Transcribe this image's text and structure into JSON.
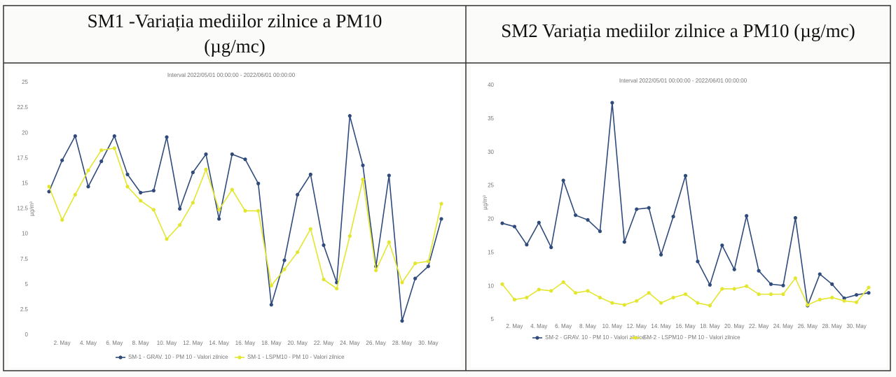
{
  "chart_data": [
    {
      "type": "line",
      "title": "SM1 -Variația mediilor zilnice a PM10 (µg/mc)",
      "subtitle": "Interval 2022/05/01 00:00:00 - 2022/06/01 00:00:00",
      "y_label": "µg/m³",
      "categories": [
        null,
        "2. May",
        null,
        "4. May",
        null,
        "6. May",
        null,
        "8. May",
        null,
        "10. May",
        null,
        "12. May",
        null,
        "14. May",
        null,
        "16. May",
        null,
        "18. May",
        null,
        "20. May",
        null,
        "22. May",
        null,
        "24. May",
        null,
        "26. May",
        null,
        "28. May",
        null,
        "30. May",
        null
      ],
      "series": [
        {
          "name": "SM-1 - GRAV. 10 - PM 10 - Valori zilnice",
          "color": "#2f4b7c",
          "values": [
            14.2,
            17.3,
            19.7,
            14.7,
            17.2,
            19.7,
            15.9,
            14.1,
            14.3,
            19.6,
            12.5,
            16.1,
            17.9,
            11.5,
            17.9,
            17.4,
            15.0,
            3.0,
            7.4,
            13.9,
            15.9,
            8.9,
            5.2,
            21.7,
            16.8,
            6.8,
            15.8,
            1.4,
            5.6,
            6.8,
            11.5
          ]
        },
        {
          "name": "SM-1 - LSPM10 - PM 10 - Valori zilnice",
          "color": "#e3e62e",
          "values": [
            14.7,
            11.4,
            13.9,
            16.3,
            18.3,
            18.5,
            14.7,
            13.3,
            12.4,
            9.5,
            10.9,
            13.1,
            16.4,
            12.4,
            14.4,
            12.3,
            12.3,
            4.9,
            6.5,
            8.2,
            10.5,
            5.5,
            4.6,
            9.8,
            15.4,
            6.4,
            9.2,
            5.2,
            7.1,
            7.3,
            13.0
          ]
        }
      ],
      "ylim": [
        0,
        25
      ],
      "yticks": [
        0,
        2.5,
        5,
        7.5,
        10,
        12.5,
        15,
        17.5,
        20,
        22.5,
        25
      ],
      "grid": false
    },
    {
      "type": "line",
      "title": "SM2 Variația mediilor zilnice a PM10 (µg/mc)",
      "subtitle": "Interval 2022/05/01 00:00:00 - 2022/06/01 00:00:00",
      "y_label": "µg/m³",
      "categories": [
        null,
        "2. May",
        null,
        "4. May",
        null,
        "6. May",
        null,
        "8. May",
        null,
        "10. May",
        null,
        "12. May",
        null,
        "14. May",
        null,
        "16. May",
        null,
        "18. May",
        null,
        "20. May",
        null,
        "22. May",
        null,
        "24. May",
        null,
        "26. May",
        null,
        "28. May",
        null,
        "30. May",
        null
      ],
      "series": [
        {
          "name": "SM-2 - GRAV. 10 - PM 10 - Valori zilnice",
          "color": "#2f4b7c",
          "values": [
            19.4,
            18.9,
            16.2,
            19.5,
            15.8,
            25.8,
            20.6,
            19.9,
            18.2,
            37.4,
            16.6,
            21.5,
            21.7,
            14.7,
            20.4,
            26.5,
            13.7,
            10.2,
            16.1,
            12.5,
            20.5,
            12.3,
            10.3,
            10.1,
            20.2,
            7.1,
            11.8,
            10.3,
            8.2,
            8.7,
            9.0
          ]
        },
        {
          "name": "SM-2 - LSPM10 - PM 10 - Valori zilnice",
          "color": "#e3e62e",
          "values": [
            10.3,
            8.0,
            8.3,
            9.5,
            9.3,
            10.6,
            9.0,
            9.3,
            8.3,
            7.5,
            7.2,
            7.8,
            9.0,
            7.5,
            8.3,
            8.8,
            7.5,
            7.1,
            9.6,
            9.6,
            10.0,
            8.8,
            8.8,
            8.8,
            11.2,
            7.2,
            8.0,
            8.3,
            7.8,
            7.6,
            9.8
          ]
        }
      ],
      "ylim": [
        5,
        40
      ],
      "yticks": [
        5,
        10,
        15,
        20,
        25,
        30,
        35,
        40
      ],
      "grid": false
    }
  ]
}
